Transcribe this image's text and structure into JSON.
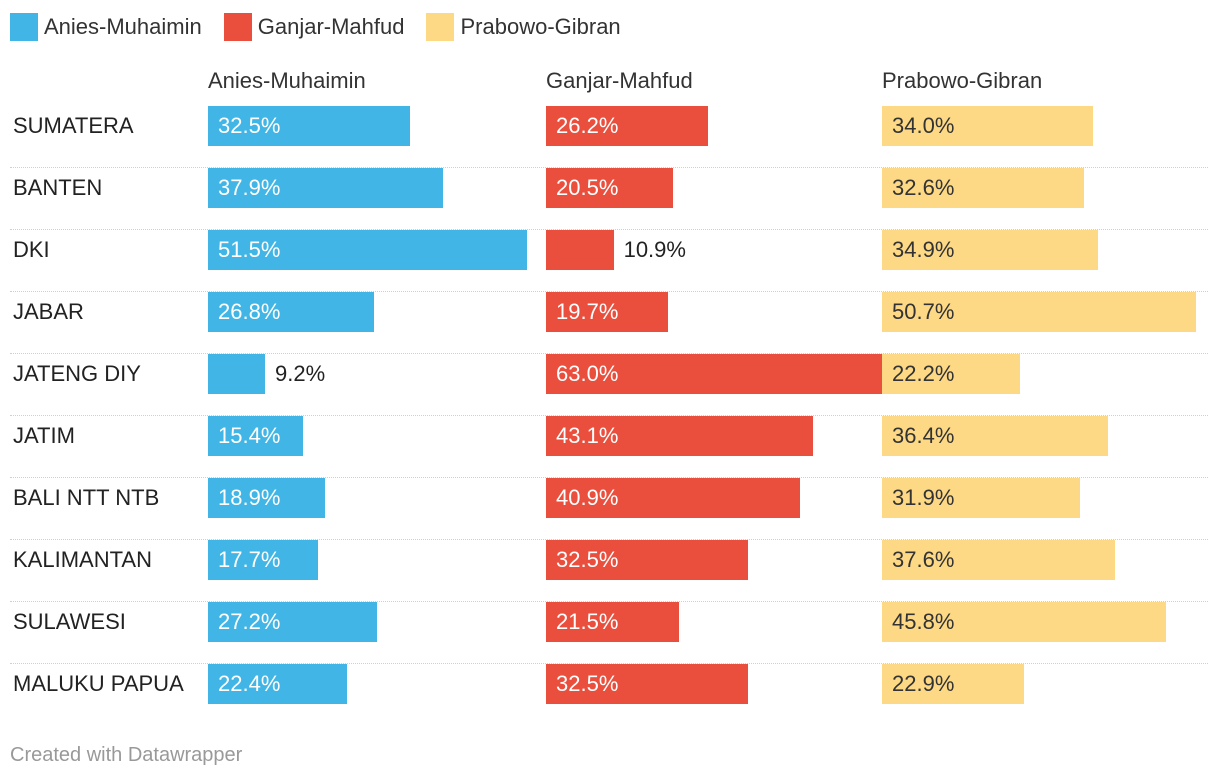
{
  "legend": [
    {
      "name": "Anies-Muhaimin",
      "color": "#41b6e6"
    },
    {
      "name": "Ganjar-Mahfud",
      "color": "#ea4f3d"
    },
    {
      "name": "Prabowo-Gibran",
      "color": "#fdd985"
    }
  ],
  "footer": "Created with Datawrapper",
  "chart_data": {
    "type": "bar",
    "categories": [
      "SUMATERA",
      "BANTEN",
      "DKI",
      "JABAR",
      "JATENG DIY",
      "JATIM",
      "BALI NTT NTB",
      "KALIMANTAN",
      "SULAWESI",
      "MALUKU PAPUA"
    ],
    "series": [
      {
        "name": "Anies-Muhaimin",
        "color": "#41b6e6",
        "text_color": "#ffffff",
        "values": [
          32.5,
          37.9,
          51.5,
          26.8,
          9.2,
          15.4,
          18.9,
          17.7,
          27.2,
          22.4
        ]
      },
      {
        "name": "Ganjar-Mahfud",
        "color": "#ea4f3d",
        "text_color": "#ffffff",
        "values": [
          26.2,
          20.5,
          10.9,
          19.7,
          63.0,
          43.1,
          40.9,
          32.5,
          21.5,
          32.5
        ]
      },
      {
        "name": "Prabowo-Gibran",
        "color": "#fdd985",
        "text_color": "#333333",
        "values": [
          34.0,
          32.6,
          34.9,
          50.7,
          22.2,
          36.4,
          31.9,
          37.6,
          45.8,
          22.9
        ]
      }
    ],
    "value_suffix": "%",
    "xlim": [
      0,
      63
    ]
  }
}
